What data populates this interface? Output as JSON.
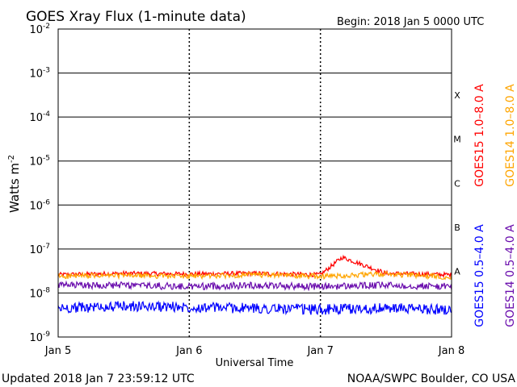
{
  "chart_data": {
    "type": "line",
    "title": "GOES Xray Flux (1-minute data)",
    "begin_label": "Begin:  2018 Jan 5 0000 UTC",
    "ylabel": "Watts m",
    "ylabel_sup": "-2",
    "xlabel": "Universal Time",
    "y_scale": "log",
    "ylim": [
      1e-09,
      0.01
    ],
    "y_ticks": [
      {
        "base": "10",
        "exp": "-9"
      },
      {
        "base": "10",
        "exp": "-8"
      },
      {
        "base": "10",
        "exp": "-7"
      },
      {
        "base": "10",
        "exp": "-6"
      },
      {
        "base": "10",
        "exp": "-5"
      },
      {
        "base": "10",
        "exp": "-4"
      },
      {
        "base": "10",
        "exp": "-3"
      },
      {
        "base": "10",
        "exp": "-2"
      }
    ],
    "x_ticks": [
      "Jan 5",
      "Jan 6",
      "Jan 7",
      "Jan 8"
    ],
    "xlim": [
      "2018-01-05 00:00",
      "2018-01-08 00:00"
    ],
    "flare_classes": [
      "A",
      "B",
      "C",
      "M",
      "X"
    ],
    "grid": true,
    "series": [
      {
        "name": "GOES15 1.0–8.0 A",
        "color": "#ff0000",
        "x": [
          "2018-01-05 00:00",
          "2018-01-05 12:00",
          "2018-01-06 00:00",
          "2018-01-06 12:00",
          "2018-01-07 00:00",
          "2018-01-07 04:00",
          "2018-01-07 12:00",
          "2018-01-08 00:00"
        ],
        "values": [
          2.6e-08,
          2.8e-08,
          2.7e-08,
          2.8e-08,
          2.6e-08,
          6.5e-08,
          2.8e-08,
          2.6e-08
        ]
      },
      {
        "name": "GOES14 1.0–8.0 A",
        "color": "#ffa500",
        "x": [
          "2018-01-05 00:00",
          "2018-01-05 12:00",
          "2018-01-06 00:00",
          "2018-01-06 12:00",
          "2018-01-07 00:00",
          "2018-01-07 12:00",
          "2018-01-08 00:00"
        ],
        "values": [
          2.4e-08,
          2.5e-08,
          2.4e-08,
          2.6e-08,
          2.4e-08,
          2.7e-08,
          2.3e-08
        ]
      },
      {
        "name": "GOES15 0.5–4.0 A",
        "color": "#0000ff",
        "x": [
          "2018-01-05 00:00",
          "2018-01-05 12:00",
          "2018-01-06 00:00",
          "2018-01-06 12:00",
          "2018-01-07 00:00",
          "2018-01-07 12:00",
          "2018-01-08 00:00"
        ],
        "values": [
          4.5e-09,
          5e-09,
          4.8e-09,
          4.5e-09,
          4.2e-09,
          4.5e-09,
          4.2e-09
        ]
      },
      {
        "name": "GOES14 0.5–4.0 A",
        "color": "#6a0dad",
        "x": [
          "2018-01-05 00:00",
          "2018-01-05 12:00",
          "2018-01-06 00:00",
          "2018-01-06 12:00",
          "2018-01-07 00:00",
          "2018-01-07 12:00",
          "2018-01-08 00:00"
        ],
        "values": [
          1.5e-08,
          1.5e-08,
          1.4e-08,
          1.5e-08,
          1.4e-08,
          1.5e-08,
          1.4e-08
        ]
      }
    ]
  },
  "footer": {
    "updated": "Updated 2018 Jan  7 23:59:12 UTC",
    "credit": "NOAA/SWPC Boulder, CO USA"
  }
}
